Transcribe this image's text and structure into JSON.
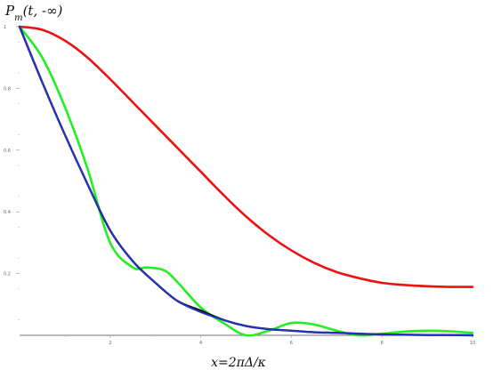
{
  "chart_data": {
    "type": "line",
    "ylabel": "P_m(t, -∞)",
    "xlabel": "x=2πΔ/κ",
    "xlim": [
      0,
      10
    ],
    "ylim": [
      0,
      1
    ],
    "grid": false,
    "x_ticks": [
      "2",
      "4",
      "6",
      "8",
      "10"
    ],
    "y_ticks": [
      "1",
      "0.8",
      "0.6",
      "0.4",
      "0.2"
    ],
    "series": [
      {
        "color": "#ee1111",
        "x": [
          0,
          0.5,
          1,
          1.5,
          2,
          2.5,
          3,
          3.5,
          4,
          4.5,
          5,
          5.5,
          6,
          6.5,
          7,
          7.5,
          8,
          8.5,
          9,
          9.5,
          10
        ],
        "y": [
          1.0,
          0.99,
          0.955,
          0.9,
          0.83,
          0.755,
          0.68,
          0.605,
          0.53,
          0.455,
          0.385,
          0.325,
          0.275,
          0.235,
          0.205,
          0.185,
          0.17,
          0.163,
          0.159,
          0.157,
          0.157
        ]
      },
      {
        "color": "#22ee22",
        "x": [
          0,
          0.5,
          1,
          1.5,
          2,
          2.5,
          2.8,
          3.2,
          3.5,
          4,
          4.5,
          5,
          5.5,
          6,
          6.5,
          7,
          7.5,
          8,
          8.5,
          9,
          9.5,
          10
        ],
        "y": [
          1.0,
          0.9,
          0.74,
          0.54,
          0.3,
          0.22,
          0.22,
          0.21,
          0.17,
          0.09,
          0.04,
          0.0,
          0.015,
          0.04,
          0.035,
          0.015,
          0.0,
          0.005,
          0.012,
          0.015,
          0.013,
          0.008
        ]
      },
      {
        "color": "#111111",
        "x": [
          0,
          0.5,
          1,
          1.5,
          2,
          2.5,
          3,
          3.5,
          4,
          4.5,
          5,
          5.5,
          6,
          6.5,
          7,
          7.5,
          8,
          8.5,
          9,
          9.5,
          10
        ],
        "y": [
          1.0,
          0.82,
          0.65,
          0.49,
          0.34,
          0.24,
          0.17,
          0.11,
          0.08,
          0.05,
          0.03,
          0.02,
          0.015,
          0.01,
          0.008,
          0.005,
          0.003,
          0.002,
          0.001,
          0.001,
          0.0
        ]
      },
      {
        "color": "#2233cc",
        "x": [
          0,
          0.5,
          1,
          1.5,
          2,
          2.5,
          3,
          3.5,
          4,
          4.5,
          5,
          5.5,
          6,
          6.5,
          7,
          7.5,
          8,
          8.5,
          9,
          9.5,
          10
        ],
        "y": [
          1.0,
          0.82,
          0.65,
          0.49,
          0.34,
          0.24,
          0.17,
          0.11,
          0.075,
          0.05,
          0.03,
          0.02,
          0.015,
          0.01,
          0.008,
          0.005,
          0.003,
          0.002,
          0.001,
          0.001,
          0.0
        ]
      }
    ]
  }
}
